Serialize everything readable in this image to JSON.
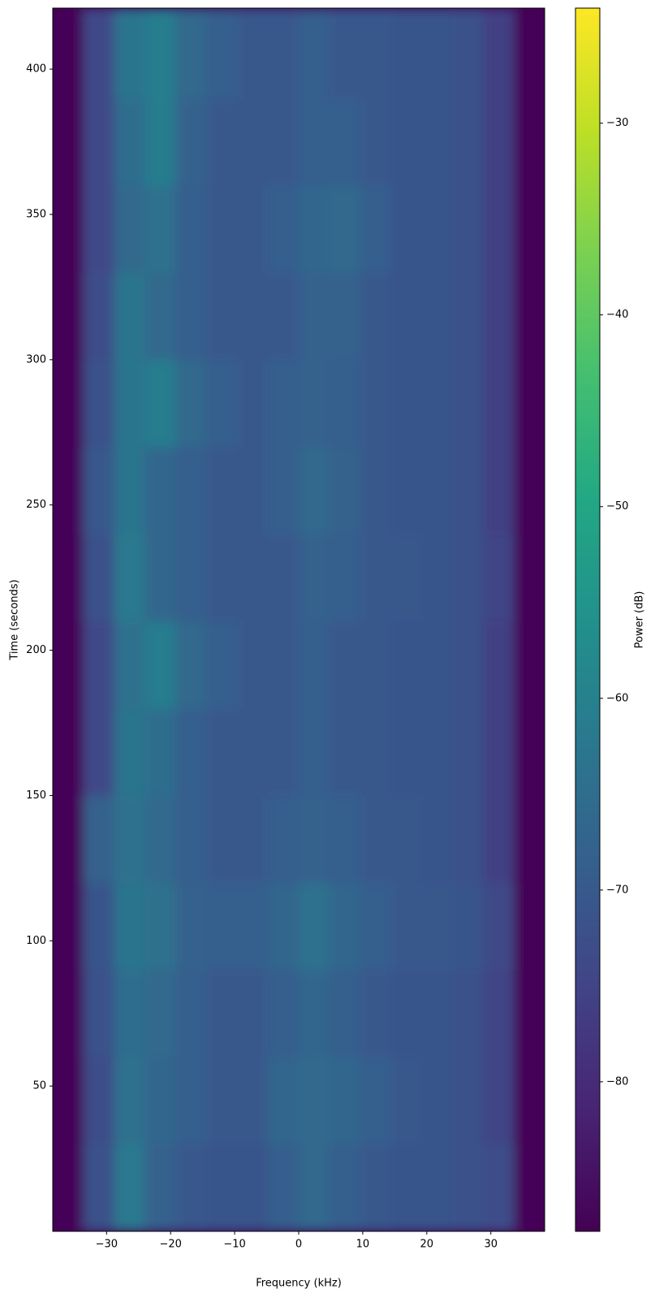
{
  "chart_data": {
    "type": "spectrogram",
    "xlabel": "Frequency (kHz)",
    "ylabel": "Time (seconds)",
    "colorbar_label": "Power (dB)",
    "xlim": [
      -38.4,
      38.4
    ],
    "ylim": [
      0,
      421
    ],
    "clim": [
      -87.8,
      -24
    ],
    "xticks": [
      {
        "value": -30,
        "label": "−30"
      },
      {
        "value": -20,
        "label": "−20"
      },
      {
        "value": -10,
        "label": "−10"
      },
      0,
      10,
      20,
      30
    ],
    "yticks": [
      50,
      100,
      150,
      200,
      250,
      300,
      350,
      400
    ],
    "cticks": [
      {
        "value": -80,
        "label": "−80"
      },
      {
        "value": -70,
        "label": "−70"
      },
      {
        "value": -60,
        "label": "−60"
      },
      {
        "value": -50,
        "label": "−50"
      },
      {
        "value": -40,
        "label": "−40"
      },
      {
        "value": -30,
        "label": "−30"
      }
    ],
    "colormap": "viridis",
    "xbins": [
      -38.4,
      -33.6,
      -28.8,
      -24,
      -19.2,
      -14.4,
      -9.6,
      -4.8,
      0,
      4.8,
      9.6,
      14.4,
      19.2,
      24,
      28.8,
      33.6,
      38.4
    ],
    "ybins": [
      0,
      30,
      60,
      90,
      120,
      150,
      180,
      210,
      240,
      270,
      300,
      330,
      360,
      390,
      421
    ],
    "z": [
      [
        -87,
        -72,
        -62,
        -68,
        -70,
        -71,
        -71,
        -69,
        -66,
        -69,
        -70,
        -71,
        -71,
        -72,
        -73,
        -87
      ],
      [
        -87,
        -73,
        -64,
        -67,
        -69,
        -70,
        -70,
        -67,
        -66,
        -67,
        -69,
        -70,
        -71,
        -72,
        -75,
        -87
      ],
      [
        -87,
        -72,
        -65,
        -66,
        -69,
        -70,
        -70,
        -69,
        -67,
        -69,
        -70,
        -71,
        -71,
        -72,
        -75,
        -87
      ],
      [
        -87,
        -71,
        -63,
        -64,
        -68,
        -69,
        -69,
        -67,
        -64,
        -67,
        -69,
        -70,
        -70,
        -71,
        -74,
        -87
      ],
      [
        -87,
        -68,
        -64,
        -66,
        -69,
        -70,
        -70,
        -69,
        -68,
        -69,
        -70,
        -70,
        -71,
        -72,
        -76,
        -87
      ],
      [
        -87,
        -74,
        -63,
        -65,
        -69,
        -70,
        -70,
        -70,
        -69,
        -70,
        -70,
        -71,
        -71,
        -72,
        -76,
        -87
      ],
      [
        -87,
        -74,
        -64,
        -61,
        -66,
        -69,
        -70,
        -70,
        -69,
        -70,
        -70,
        -71,
        -71,
        -72,
        -76,
        -87
      ],
      [
        -87,
        -72,
        -62,
        -67,
        -69,
        -70,
        -70,
        -70,
        -68,
        -69,
        -70,
        -70,
        -71,
        -72,
        -75,
        -87
      ],
      [
        -87,
        -70,
        -63,
        -67,
        -69,
        -70,
        -70,
        -69,
        -66,
        -68,
        -70,
        -71,
        -71,
        -72,
        -76,
        -87
      ],
      [
        -87,
        -72,
        -63,
        -61,
        -66,
        -69,
        -70,
        -69,
        -68,
        -69,
        -70,
        -71,
        -71,
        -72,
        -76,
        -87
      ],
      [
        -87,
        -73,
        -63,
        -66,
        -69,
        -70,
        -70,
        -70,
        -68,
        -68,
        -70,
        -71,
        -71,
        -72,
        -76,
        -87
      ],
      [
        -87,
        -74,
        -66,
        -64,
        -69,
        -70,
        -70,
        -69,
        -67,
        -66,
        -69,
        -71,
        -71,
        -72,
        -76,
        -87
      ],
      [
        -87,
        -74,
        -65,
        -61,
        -68,
        -70,
        -70,
        -70,
        -69,
        -69,
        -70,
        -71,
        -71,
        -72,
        -76,
        -87
      ],
      [
        -87,
        -74,
        -63,
        -61,
        -66,
        -69,
        -70,
        -70,
        -69,
        -70,
        -70,
        -71,
        -71,
        -72,
        -76,
        -87
      ]
    ]
  }
}
